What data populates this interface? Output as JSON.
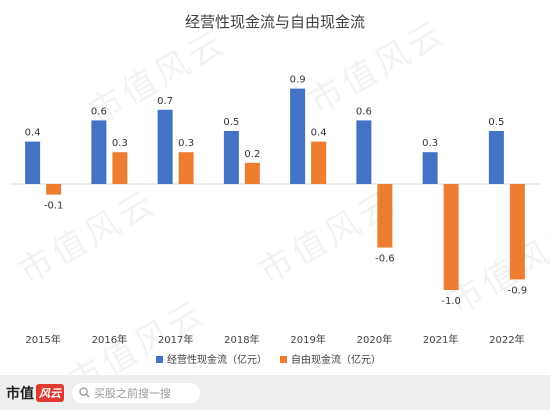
{
  "watermark": "市值风云",
  "chart_data": {
    "type": "bar",
    "title": "经营性现金流与自由现金流",
    "categories": [
      "2015年",
      "2016年",
      "2017年",
      "2018年",
      "2019年",
      "2020年",
      "2021年",
      "2022年"
    ],
    "series": [
      {
        "name": "经营性现金流（亿元）",
        "color": "#4472c4",
        "values": [
          0.4,
          0.6,
          0.7,
          0.5,
          0.9,
          0.6,
          0.3,
          0.5
        ],
        "labels": [
          "0.4",
          "0.6",
          "0.7",
          "0.5",
          "0.9",
          "0.6",
          "0.3",
          "0.5"
        ]
      },
      {
        "name": "自由现金流（亿元）",
        "color": "#ed7d31",
        "values": [
          -0.1,
          0.3,
          0.3,
          0.2,
          0.4,
          -0.6,
          -1.0,
          -0.9
        ],
        "labels": [
          "-0.1",
          "0.3",
          "0.3",
          "0.2",
          "0.4",
          "-0.6",
          "-1.0",
          "-0.9"
        ]
      }
    ],
    "ylim": [
      -1.0,
      0.9
    ],
    "grid": false,
    "legend": "bottom"
  },
  "footer": {
    "logo_text": "市值",
    "logo_badge": "风云",
    "search_placeholder": "买股之前搜一搜"
  }
}
